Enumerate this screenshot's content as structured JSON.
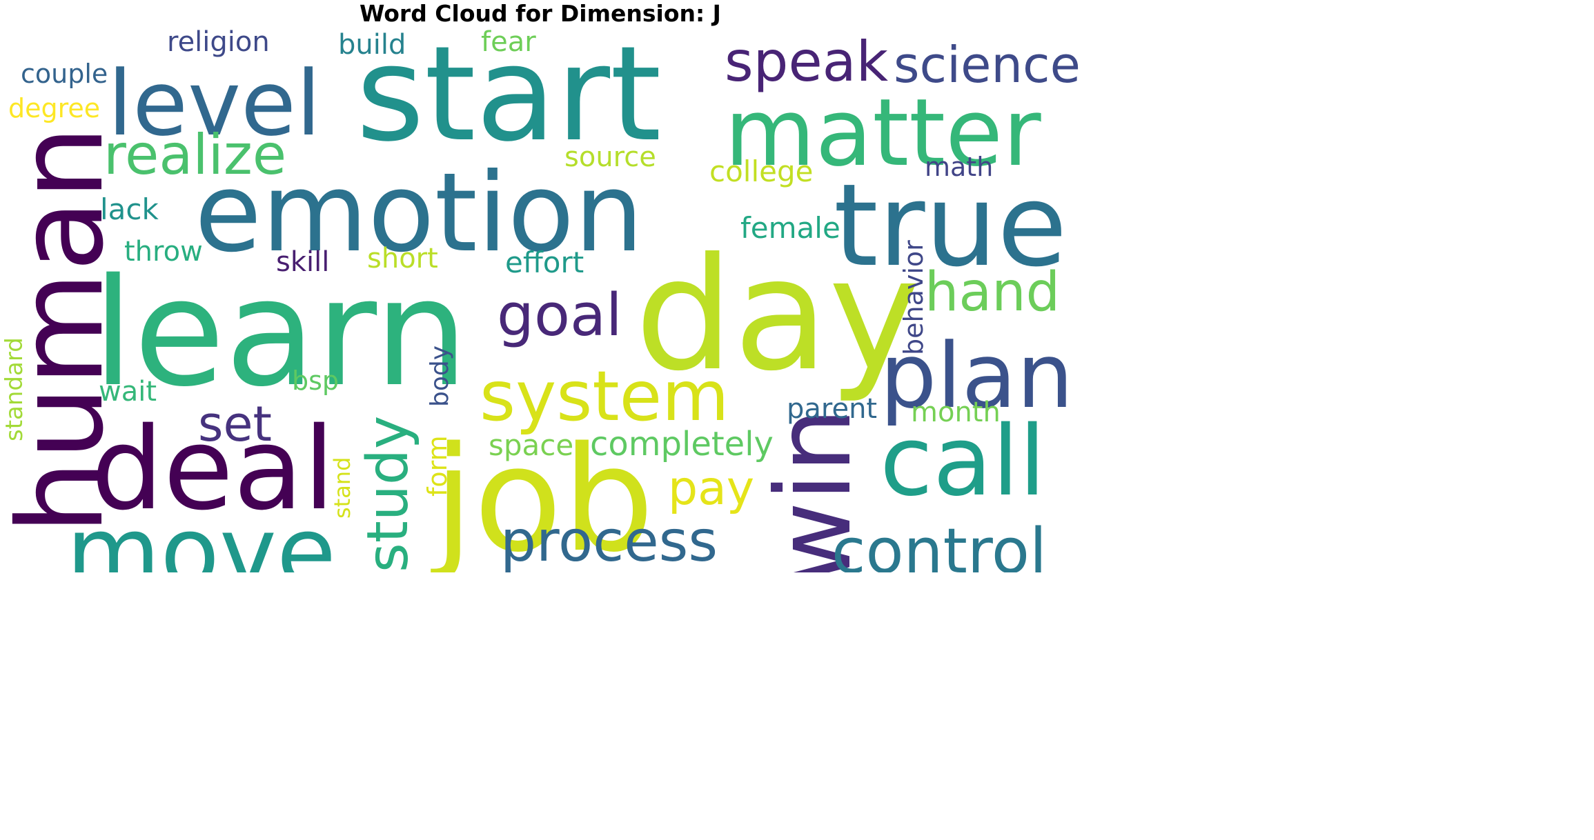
{
  "title": "Word Cloud for Dimension: J",
  "words": [
    {
      "text": "start",
      "color": "#21918c"
    },
    {
      "text": "emotion",
      "color": "#2c728e"
    },
    {
      "text": "learn",
      "color": "#2db27d"
    },
    {
      "text": "day",
      "color": "#bddf26"
    },
    {
      "text": "human",
      "color": "#440154"
    },
    {
      "text": "deal",
      "color": "#440154"
    },
    {
      "text": "move",
      "color": "#1f988b"
    },
    {
      "text": "job",
      "color": "#d0e11c"
    },
    {
      "text": "true",
      "color": "#2c728e"
    },
    {
      "text": "matter",
      "color": "#35b779"
    },
    {
      "text": "level",
      "color": "#31688e"
    },
    {
      "text": "speak",
      "color": "#482475"
    },
    {
      "text": "science",
      "color": "#3e4a89"
    },
    {
      "text": "realize",
      "color": "#4ac16d"
    },
    {
      "text": "plan",
      "color": "#3b528b"
    },
    {
      "text": "call",
      "color": "#1f9e89"
    },
    {
      "text": "win",
      "color": "#472d7b"
    },
    {
      "text": "system",
      "color": "#d8e219"
    },
    {
      "text": "process",
      "color": "#31688e"
    },
    {
      "text": "control",
      "color": "#2a788e"
    },
    {
      "text": "goal",
      "color": "#482878"
    },
    {
      "text": "hand",
      "color": "#6ccd5a"
    },
    {
      "text": "study",
      "color": "#29af7f"
    },
    {
      "text": "set",
      "color": "#46327e"
    },
    {
      "text": "pay",
      "color": "#e5e419"
    },
    {
      "text": "completely",
      "color": "#5ec962"
    },
    {
      "text": "space",
      "color": "#7ad151"
    },
    {
      "text": "religion",
      "color": "#3e4989"
    },
    {
      "text": "build",
      "color": "#26828e"
    },
    {
      "text": "fear",
      "color": "#6ece58"
    },
    {
      "text": "couple",
      "color": "#33638d"
    },
    {
      "text": "degree",
      "color": "#fde725"
    },
    {
      "text": "source",
      "color": "#b5de2b"
    },
    {
      "text": "college",
      "color": "#c2df23"
    },
    {
      "text": "math",
      "color": "#414487"
    },
    {
      "text": "lack",
      "color": "#20928c"
    },
    {
      "text": "female",
      "color": "#22a884"
    },
    {
      "text": "throw",
      "color": "#28ae80"
    },
    {
      "text": "skill",
      "color": "#481f70"
    },
    {
      "text": "short",
      "color": "#bade28"
    },
    {
      "text": "effort",
      "color": "#1f9a8a"
    },
    {
      "text": "behavior",
      "color": "#3f4788"
    },
    {
      "text": "standard",
      "color": "#a2da37"
    },
    {
      "text": "body",
      "color": "#3b528b"
    },
    {
      "text": "bsp",
      "color": "#5ec962"
    },
    {
      "text": "wait",
      "color": "#35b779"
    },
    {
      "text": "stand",
      "color": "#d5e21a"
    },
    {
      "text": "form",
      "color": "#dde318"
    },
    {
      "text": "parent",
      "color": "#31688e"
    },
    {
      "text": "month",
      "color": "#75d054"
    }
  ]
}
